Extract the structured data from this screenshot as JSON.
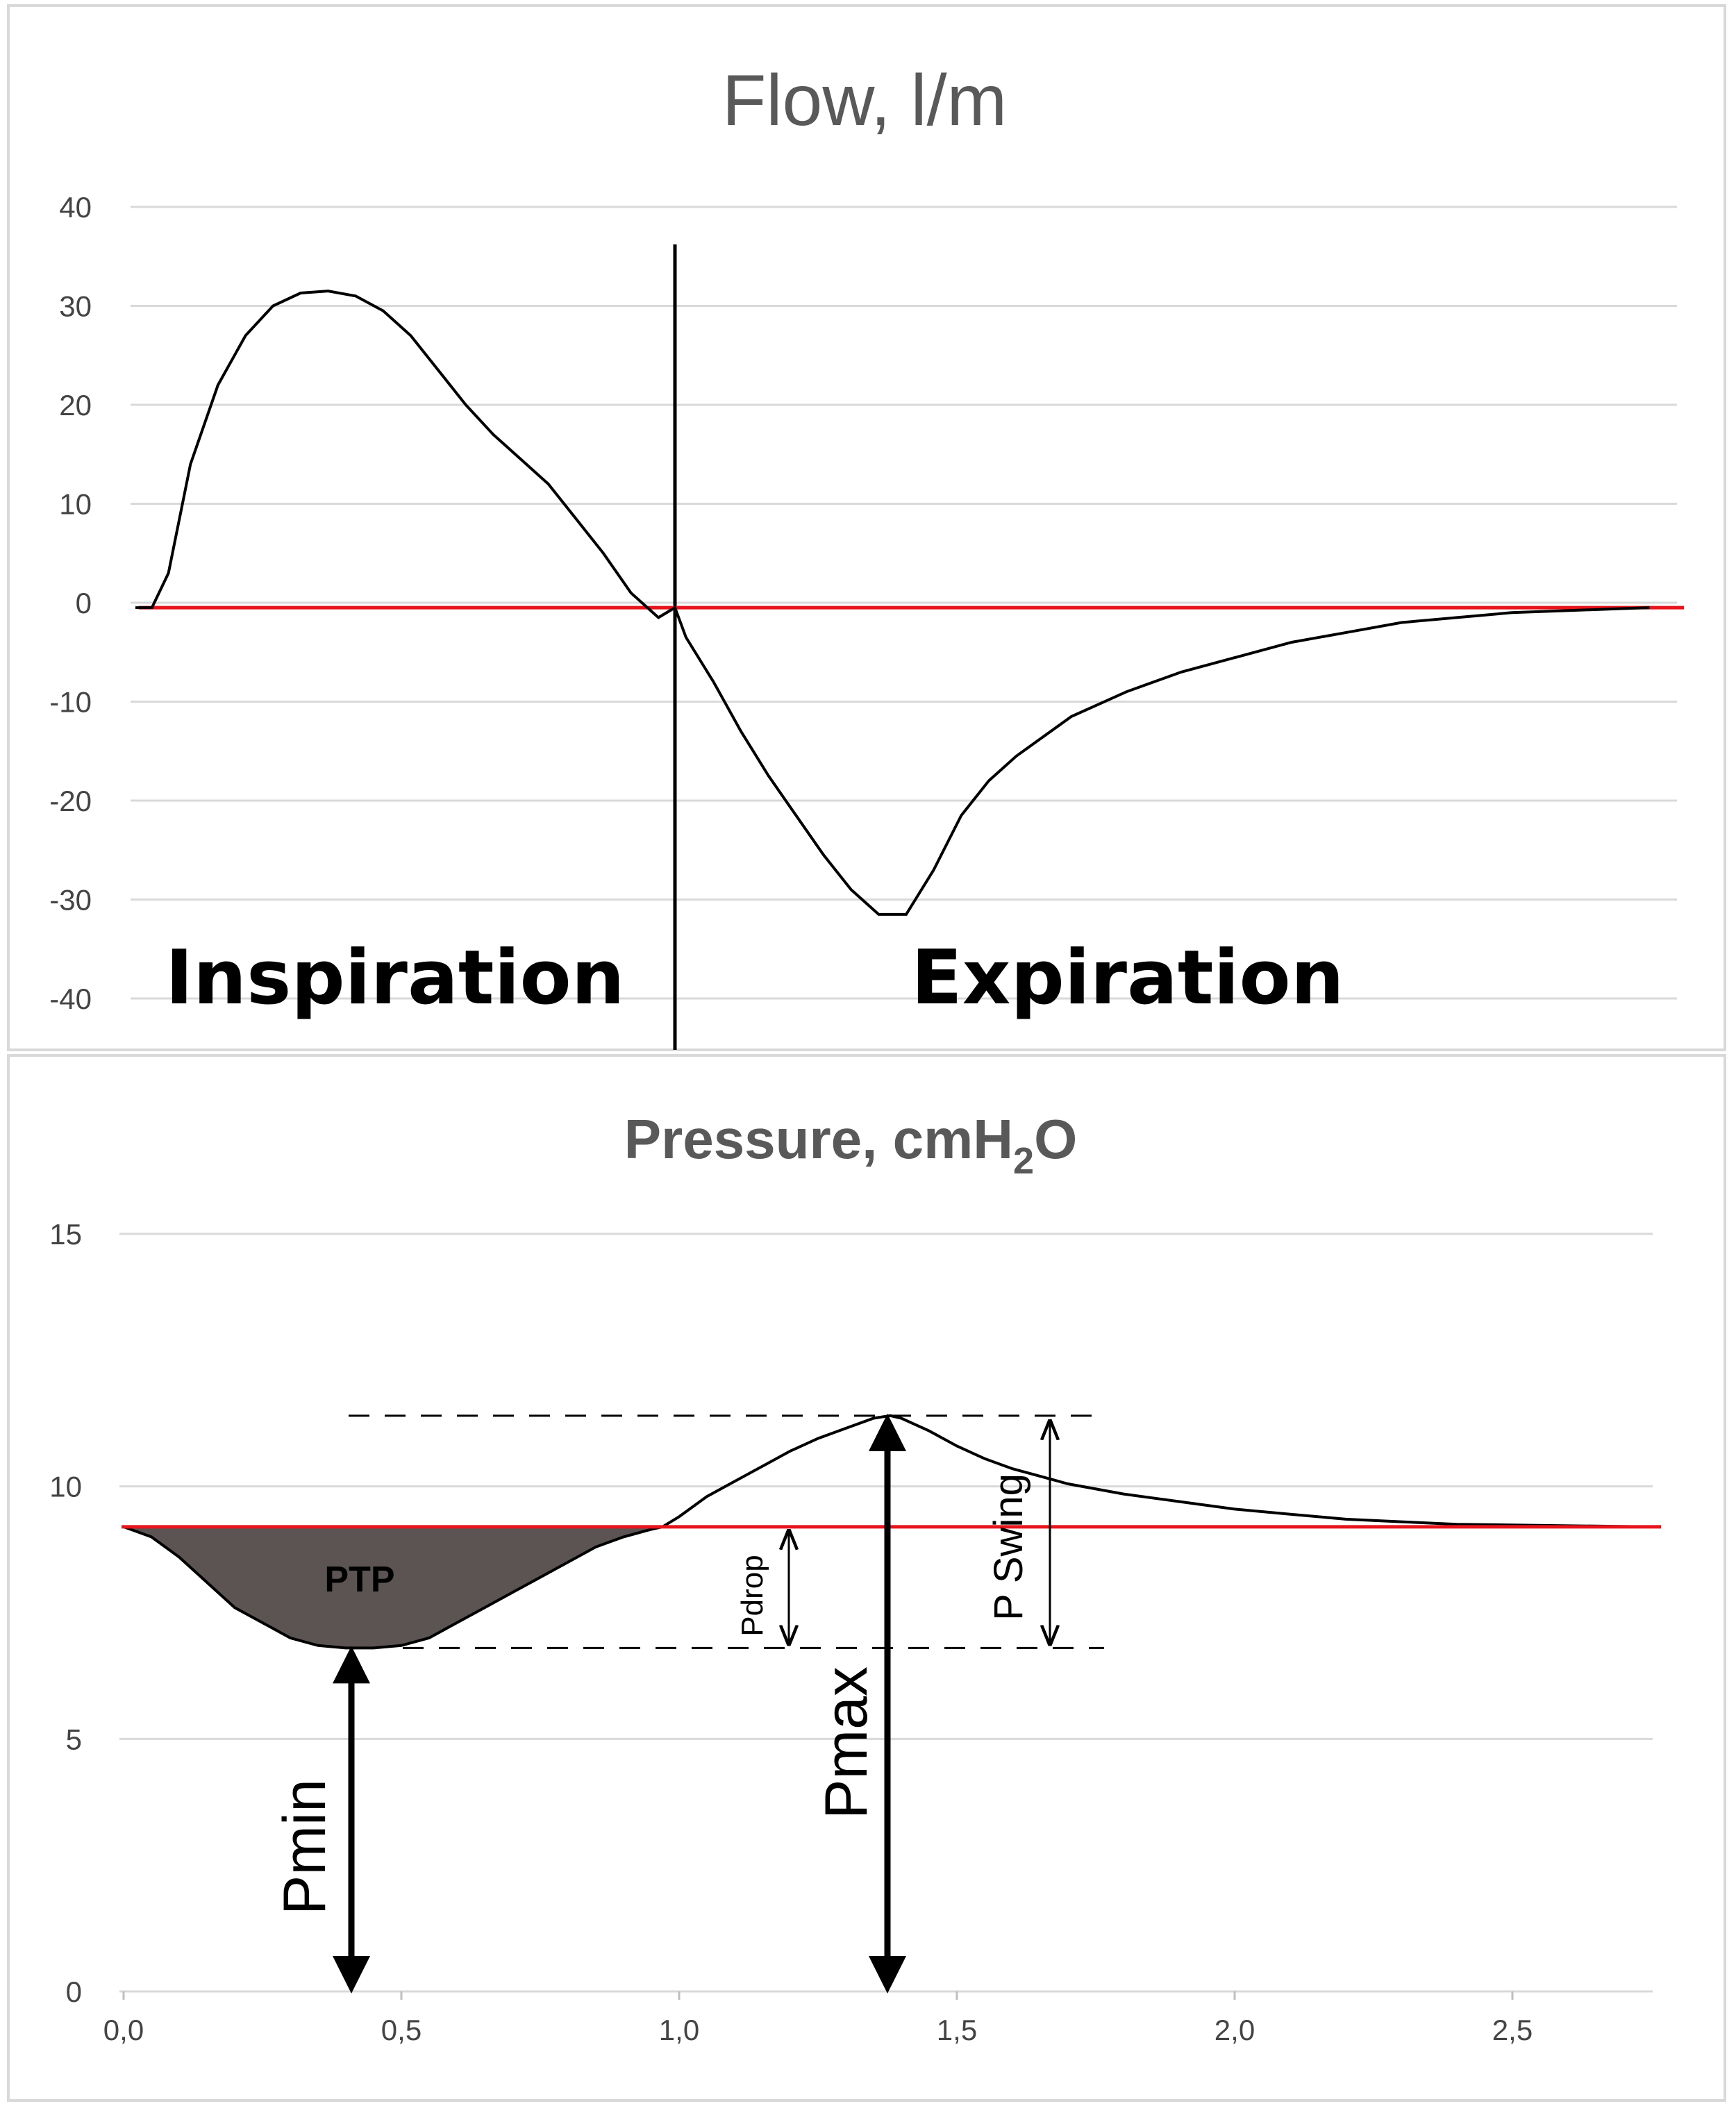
{
  "chart_data": [
    {
      "type": "line",
      "title": "Flow, l/m",
      "xlabel": "",
      "ylabel": "",
      "ylim": [
        -40,
        40
      ],
      "xlim": [
        0,
        2.8
      ],
      "yticks": [
        "40",
        "30",
        "20",
        "10",
        "0",
        "-10",
        "-20",
        "-30",
        "-40"
      ],
      "grid": true,
      "phase_labels": {
        "inspiration": "Inspiration",
        "expiration": "Expiration"
      },
      "phase_divider_x": 0.98,
      "baseline_y": -0.5,
      "series": [
        {
          "color": "#000000",
          "x": [
            0.0,
            0.03,
            0.06,
            0.1,
            0.15,
            0.2,
            0.25,
            0.3,
            0.35,
            0.4,
            0.45,
            0.5,
            0.55,
            0.6,
            0.65,
            0.7,
            0.75,
            0.8,
            0.85,
            0.9,
            0.95,
            0.98,
            1.0,
            1.05,
            1.1,
            1.15,
            1.2,
            1.25,
            1.3,
            1.35,
            1.4,
            1.45,
            1.5,
            1.55,
            1.6,
            1.7,
            1.8,
            1.9,
            2.0,
            2.1,
            2.2,
            2.3,
            2.4,
            2.5,
            2.6,
            2.7,
            2.75
          ],
          "y": [
            -0.5,
            -0.5,
            3,
            14,
            22,
            27,
            30,
            31.3,
            31.5,
            31,
            29.5,
            27,
            23.5,
            20,
            17,
            14.5,
            12,
            8.5,
            5,
            1,
            -1.5,
            -0.5,
            -3.5,
            -8,
            -13,
            -17.5,
            -21.5,
            -25.5,
            -29,
            -31.5,
            -31.5,
            -27,
            -21.5,
            -18,
            -15.5,
            -11.5,
            -9,
            -7,
            -5.5,
            -4,
            -3,
            -2,
            -1.5,
            -1,
            -0.8,
            -0.6,
            -0.5
          ]
        }
      ]
    },
    {
      "type": "area",
      "title": "Pressure, cmH",
      "title_subscript": "2",
      "title_suffix": "O",
      "xlabel": "",
      "ylabel": "",
      "ylim": [
        0,
        15
      ],
      "xlim": [
        0,
        2.75
      ],
      "yticks": [
        "15",
        "10",
        "5",
        "0"
      ],
      "xticks": [
        "0,0",
        "0,5",
        "1,0",
        "1,5",
        "2,0",
        "2,5"
      ],
      "grid": true,
      "baseline_y": 9.2,
      "pmin_level": 6.8,
      "pmax_level": 11.4,
      "annotations": {
        "ptp": "PTP",
        "pdrop": "Pdrop",
        "pswing": "P Swing",
        "pmin": "Pmin",
        "pmax": "Pmax"
      },
      "series": [
        {
          "color": "#000000",
          "fill": "#5c5452",
          "x": [
            0.0,
            0.05,
            0.1,
            0.15,
            0.2,
            0.25,
            0.3,
            0.35,
            0.4,
            0.45,
            0.5,
            0.55,
            0.6,
            0.65,
            0.7,
            0.75,
            0.8,
            0.85,
            0.9,
            0.95,
            0.97,
            1.0,
            1.05,
            1.1,
            1.15,
            1.2,
            1.25,
            1.3,
            1.35,
            1.38,
            1.4,
            1.45,
            1.5,
            1.55,
            1.6,
            1.65,
            1.7,
            1.8,
            1.9,
            2.0,
            2.1,
            2.2,
            2.3,
            2.4,
            2.75
          ],
          "y": [
            9.2,
            9.0,
            8.6,
            8.1,
            7.6,
            7.3,
            7.0,
            6.85,
            6.8,
            6.8,
            6.85,
            7.0,
            7.3,
            7.6,
            7.9,
            8.2,
            8.5,
            8.8,
            9.0,
            9.15,
            9.2,
            9.4,
            9.8,
            10.1,
            10.4,
            10.7,
            10.95,
            11.15,
            11.35,
            11.4,
            11.35,
            11.1,
            10.8,
            10.55,
            10.35,
            10.2,
            10.05,
            9.85,
            9.7,
            9.55,
            9.45,
            9.35,
            9.3,
            9.25,
            9.2
          ]
        }
      ]
    }
  ]
}
